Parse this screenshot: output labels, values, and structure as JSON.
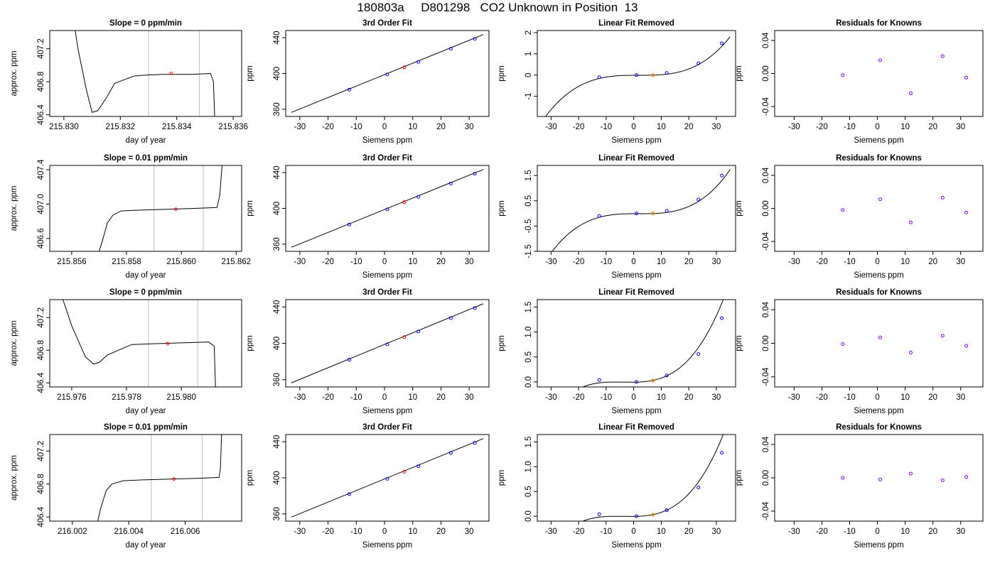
{
  "page_title": "180803a     D801298   CO2 Unknown in Position  13",
  "colors": {
    "known": "#0000ff",
    "unknown": "#ff0000",
    "reference": "#ff8c00",
    "residual": "#7f00ff",
    "guide": "#bebebe",
    "line": "#000000"
  },
  "chart_data": [
    {
      "type": "line",
      "row": 0,
      "panel": "trace",
      "title": "Slope =  0  ppm/min",
      "xlabel": "day of year",
      "ylabel": "approx. ppm",
      "xlim": [
        215.8295,
        215.8363
      ],
      "ylim": [
        406.38,
        407.42
      ],
      "xticks": [
        215.83,
        215.832,
        215.834,
        215.836
      ],
      "xtick_labels": [
        "215.830",
        "215.832",
        "215.834",
        "215.836"
      ],
      "yticks": [
        406.4,
        406.8,
        407.2
      ],
      "ytick_labels": [
        "406.4",
        "406.8",
        "407.2"
      ],
      "vlines": [
        215.833,
        215.8348
      ],
      "trace": [
        [
          215.8301,
          408.1
        ],
        [
          215.8305,
          407.2
        ],
        [
          215.8308,
          406.7
        ],
        [
          215.831,
          406.43
        ],
        [
          215.8312,
          406.45
        ],
        [
          215.8315,
          406.6
        ],
        [
          215.8318,
          406.78
        ],
        [
          215.8321,
          406.82
        ],
        [
          215.8325,
          406.87
        ],
        [
          215.8329,
          406.88
        ],
        [
          215.8335,
          406.89
        ],
        [
          215.8345,
          406.89
        ],
        [
          215.8352,
          406.9
        ],
        [
          215.8353,
          406.8
        ],
        [
          215.83535,
          406.3
        ]
      ],
      "marker": {
        "x": 215.8338,
        "y": 406.9
      }
    },
    {
      "type": "scatter",
      "row": 0,
      "panel": "fit",
      "title": "3rd Order Fit",
      "xlabel": "Siemens ppm",
      "ylabel": "ppm",
      "xlim": [
        -35,
        37
      ],
      "ylim": [
        352,
        448
      ],
      "xticks": [
        -30,
        -20,
        -10,
        0,
        10,
        20,
        30
      ],
      "xtick_labels": [
        "-30",
        "-20",
        "-10",
        "0",
        "10",
        "20",
        "30"
      ],
      "yticks": [
        360,
        400,
        440
      ],
      "ytick_labels": [
        "360",
        "400",
        "440"
      ],
      "knowns": [
        [
          -12.5,
          381.9
        ],
        [
          1.0,
          398.9
        ],
        [
          12.0,
          412.9
        ],
        [
          23.5,
          427.7
        ],
        [
          32.0,
          438.7
        ]
      ],
      "unknown": [
        7.0,
        406.8
      ],
      "fit_line": [
        [
          -33,
          356.5
        ],
        [
          35,
          443.5
        ]
      ]
    },
    {
      "type": "scatter",
      "row": 0,
      "panel": "nonlinear",
      "title": "Linear Fit Removed",
      "xlabel": "Siemens ppm",
      "ylabel": "ppm",
      "xlim": [
        -35,
        37
      ],
      "ylim": [
        -1.95,
        2.1
      ],
      "xticks": [
        -30,
        -20,
        -10,
        0,
        10,
        20,
        30
      ],
      "xtick_labels": [
        "-30",
        "-20",
        "-10",
        "0",
        "10",
        "20",
        "30"
      ],
      "yticks": [
        -1,
        0,
        1,
        2
      ],
      "ytick_labels": [
        "-1",
        "0",
        "1",
        "2"
      ],
      "curve": {
        "x0": 2,
        "c3": 5e-05,
        "c2": 2e-05,
        "c1": 0.0,
        "c0": -0.01
      },
      "knowns": [
        [
          -12.5,
          -0.1
        ],
        [
          1.0,
          0.0
        ],
        [
          12.0,
          0.1
        ],
        [
          23.5,
          0.55
        ],
        [
          32.0,
          1.5
        ]
      ],
      "reference": [
        7.0,
        0.0
      ]
    },
    {
      "type": "scatter",
      "row": 0,
      "panel": "residuals",
      "title": "Residuals for Knowns",
      "xlabel": "Siemens ppm",
      "ylabel": "ppm",
      "xlim": [
        -37,
        38
      ],
      "ylim": [
        -0.052,
        0.052
      ],
      "xticks": [
        -30,
        -20,
        -10,
        0,
        10,
        20,
        30
      ],
      "xtick_labels": [
        "-30",
        "-20",
        "-10",
        "0",
        "10",
        "20",
        "30"
      ],
      "yticks": [
        -0.04,
        0.0,
        0.04
      ],
      "ytick_labels": [
        "-0.04",
        "0.00",
        "0.04"
      ],
      "residuals": [
        [
          -12.5,
          -0.002
        ],
        [
          1.0,
          0.016
        ],
        [
          12.0,
          -0.024
        ],
        [
          23.5,
          0.021
        ],
        [
          32.0,
          -0.005
        ]
      ]
    },
    {
      "type": "line",
      "row": 1,
      "panel": "trace",
      "title": "Slope =  0.01  ppm/min",
      "xlabel": "day of year",
      "ylabel": "approx. ppm",
      "xlim": [
        215.8552,
        215.8622
      ],
      "ylim": [
        406.45,
        407.45
      ],
      "xticks": [
        215.856,
        215.858,
        215.86,
        215.862
      ],
      "xtick_labels": [
        "215.856",
        "215.858",
        "215.860",
        "215.862"
      ],
      "yticks": [
        406.6,
        407.0,
        407.4
      ],
      "ytick_labels": [
        "406.6",
        "407.0",
        "407.4"
      ],
      "vlines": [
        215.859,
        215.8608
      ],
      "trace": [
        [
          215.857,
          406.45
        ],
        [
          215.8571,
          406.55
        ],
        [
          215.8573,
          406.78
        ],
        [
          215.8575,
          406.87
        ],
        [
          215.8578,
          406.92
        ],
        [
          215.8585,
          406.93
        ],
        [
          215.8595,
          406.94
        ],
        [
          215.8605,
          406.95
        ],
        [
          215.8613,
          406.96
        ],
        [
          215.8614,
          407.1
        ],
        [
          215.8615,
          407.5
        ]
      ],
      "marker": {
        "x": 215.8598,
        "y": 406.94
      }
    },
    {
      "type": "scatter",
      "row": 1,
      "panel": "fit",
      "title": "3rd Order Fit",
      "xlabel": "Siemens ppm",
      "ylabel": "ppm",
      "xlim": [
        -35,
        37
      ],
      "ylim": [
        352,
        448
      ],
      "xticks": [
        -30,
        -20,
        -10,
        0,
        10,
        20,
        30
      ],
      "xtick_labels": [
        "-30",
        "-20",
        "-10",
        "0",
        "10",
        "20",
        "30"
      ],
      "yticks": [
        360,
        400,
        440
      ],
      "ytick_labels": [
        "360",
        "400",
        "440"
      ],
      "knowns": [
        [
          -12.5,
          381.9
        ],
        [
          1.0,
          398.9
        ],
        [
          12.0,
          412.9
        ],
        [
          23.5,
          427.7
        ],
        [
          32.0,
          438.7
        ]
      ],
      "unknown": [
        7.0,
        406.9
      ],
      "fit_line": [
        [
          -33,
          356.5
        ],
        [
          35,
          443.5
        ]
      ]
    },
    {
      "type": "scatter",
      "row": 1,
      "panel": "nonlinear",
      "title": "Linear Fit Removed",
      "xlabel": "Siemens ppm",
      "ylabel": "ppm",
      "xlim": [
        -35,
        37
      ],
      "ylim": [
        -1.5,
        1.9
      ],
      "xticks": [
        -30,
        -20,
        -10,
        0,
        10,
        20,
        30
      ],
      "xtick_labels": [
        "-30",
        "-20",
        "-10",
        "0",
        "10",
        "20",
        "30"
      ],
      "yticks": [
        -1.5,
        -0.5,
        0.5,
        1.5
      ],
      "ytick_labels": [
        "-1.5",
        "-0.5",
        "0.5",
        "1.5"
      ],
      "curve": {
        "x0": 2,
        "c3": 4.8e-05,
        "c2": 2e-05,
        "c1": 0.0,
        "c0": -0.01
      },
      "knowns": [
        [
          -12.5,
          -0.1
        ],
        [
          1.0,
          0.0
        ],
        [
          12.0,
          0.1
        ],
        [
          23.5,
          0.55
        ],
        [
          32.0,
          1.5
        ]
      ],
      "reference": [
        7.0,
        0.0
      ]
    },
    {
      "type": "scatter",
      "row": 1,
      "panel": "residuals",
      "title": "Residuals for Knowns",
      "xlabel": "Siemens ppm",
      "ylabel": "ppm",
      "xlim": [
        -37,
        38
      ],
      "ylim": [
        -0.052,
        0.052
      ],
      "xticks": [
        -30,
        -20,
        -10,
        0,
        10,
        20,
        30
      ],
      "xtick_labels": [
        "-30",
        "-20",
        "-10",
        "0",
        "10",
        "20",
        "30"
      ],
      "yticks": [
        -0.04,
        0.0,
        0.04
      ],
      "ytick_labels": [
        "-0.04",
        "0.00",
        "0.04"
      ],
      "residuals": [
        [
          -12.5,
          -0.002
        ],
        [
          1.0,
          0.011
        ],
        [
          12.0,
          -0.017
        ],
        [
          23.5,
          0.013
        ],
        [
          32.0,
          -0.005
        ]
      ]
    },
    {
      "type": "line",
      "row": 2,
      "panel": "trace",
      "title": "Slope =  0  ppm/min",
      "xlabel": "day of year",
      "ylabel": "approx. ppm",
      "xlim": [
        215.9752,
        215.9822
      ],
      "ylim": [
        406.35,
        407.42
      ],
      "xticks": [
        215.976,
        215.978,
        215.98
      ],
      "xtick_labels": [
        "215.976",
        "215.978",
        "215.980"
      ],
      "yticks": [
        406.4,
        406.8,
        407.2
      ],
      "ytick_labels": [
        "406.4",
        "406.8",
        "407.2"
      ],
      "vlines": [
        215.9788,
        215.9806
      ],
      "trace": [
        [
          215.9755,
          407.6
        ],
        [
          215.976,
          407.1
        ],
        [
          215.9765,
          406.72
        ],
        [
          215.9768,
          406.63
        ],
        [
          215.977,
          406.65
        ],
        [
          215.9773,
          406.74
        ],
        [
          215.9777,
          406.8
        ],
        [
          215.9782,
          406.87
        ],
        [
          215.979,
          406.88
        ],
        [
          215.98,
          406.89
        ],
        [
          215.981,
          406.9
        ],
        [
          215.9812,
          406.85
        ],
        [
          215.98125,
          406.3
        ]
      ],
      "marker": {
        "x": 215.9795,
        "y": 406.88
      }
    },
    {
      "type": "scatter",
      "row": 2,
      "panel": "fit",
      "title": "3rd Order Fit",
      "xlabel": "Siemens ppm",
      "ylabel": "ppm",
      "xlim": [
        -35,
        37
      ],
      "ylim": [
        352,
        448
      ],
      "xticks": [
        -30,
        -20,
        -10,
        0,
        10,
        20,
        30
      ],
      "xtick_labels": [
        "-30",
        "-20",
        "-10",
        "0",
        "10",
        "20",
        "30"
      ],
      "yticks": [
        360,
        400,
        440
      ],
      "ytick_labels": [
        "360",
        "400",
        "440"
      ],
      "knowns": [
        [
          -12.5,
          381.9
        ],
        [
          1.0,
          398.9
        ],
        [
          12.0,
          412.9
        ],
        [
          23.5,
          427.7
        ],
        [
          32.0,
          438.7
        ]
      ],
      "unknown": [
        7.0,
        406.8
      ],
      "fit_line": [
        [
          -33,
          356.5
        ],
        [
          35,
          443.5
        ]
      ]
    },
    {
      "type": "scatter",
      "row": 2,
      "panel": "nonlinear",
      "title": "Linear Fit Removed",
      "xlabel": "Siemens ppm",
      "ylabel": "ppm",
      "xlim": [
        -35,
        37
      ],
      "ylim": [
        -0.1,
        1.65
      ],
      "xticks": [
        -30,
        -20,
        -10,
        0,
        10,
        20,
        30
      ],
      "xtick_labels": [
        "-30",
        "-20",
        "-10",
        "0",
        "10",
        "20",
        "30"
      ],
      "yticks": [
        0.0,
        0.5,
        1.0,
        1.5
      ],
      "ytick_labels": [
        "0.0",
        "0.5",
        "1.0",
        "1.5"
      ],
      "curve": {
        "x0": -1,
        "c3": 3.5e-05,
        "c2": 0.0003,
        "c1": 0.0,
        "c0": -0.005
      },
      "knowns": [
        [
          -12.5,
          0.04
        ],
        [
          1.0,
          0.0
        ],
        [
          12.0,
          0.13
        ],
        [
          23.5,
          0.56
        ],
        [
          32.0,
          1.28
        ]
      ],
      "reference": [
        7.0,
        0.03
      ]
    },
    {
      "type": "scatter",
      "row": 2,
      "panel": "residuals",
      "title": "Residuals for Knowns",
      "xlabel": "Siemens ppm",
      "ylabel": "ppm",
      "xlim": [
        -37,
        38
      ],
      "ylim": [
        -0.052,
        0.052
      ],
      "xticks": [
        -30,
        -20,
        -10,
        0,
        10,
        20,
        30
      ],
      "xtick_labels": [
        "-30",
        "-20",
        "-10",
        "0",
        "10",
        "20",
        "30"
      ],
      "yticks": [
        -0.04,
        0.0,
        0.04
      ],
      "ytick_labels": [
        "-0.04",
        "0.00",
        "0.04"
      ],
      "residuals": [
        [
          -12.5,
          -0.001
        ],
        [
          1.0,
          0.007
        ],
        [
          12.0,
          -0.011
        ],
        [
          23.5,
          0.009
        ],
        [
          32.0,
          -0.003
        ]
      ]
    },
    {
      "type": "line",
      "row": 3,
      "panel": "trace",
      "title": "Slope =  0.01  ppm/min",
      "xlabel": "day of year",
      "ylabel": "approx. ppm",
      "xlim": [
        216.0012,
        216.008
      ],
      "ylim": [
        406.35,
        407.4
      ],
      "xticks": [
        216.002,
        216.004,
        216.006
      ],
      "xtick_labels": [
        "216.002",
        "216.004",
        "216.006"
      ],
      "yticks": [
        406.4,
        406.8,
        407.2
      ],
      "ytick_labels": [
        "406.4",
        "406.8",
        "407.2"
      ],
      "vlines": [
        216.0048,
        216.0066
      ],
      "trace": [
        [
          216.0029,
          406.35
        ],
        [
          216.003,
          406.5
        ],
        [
          216.0032,
          406.72
        ],
        [
          216.0034,
          406.8
        ],
        [
          216.0038,
          406.84
        ],
        [
          216.0045,
          406.85
        ],
        [
          216.0055,
          406.86
        ],
        [
          216.0065,
          406.87
        ],
        [
          216.0072,
          406.88
        ],
        [
          216.00725,
          407.0
        ],
        [
          216.0073,
          407.5
        ]
      ],
      "marker": {
        "x": 216.0056,
        "y": 406.86
      }
    },
    {
      "type": "scatter",
      "row": 3,
      "panel": "fit",
      "title": "3rd Order Fit",
      "xlabel": "Siemens ppm",
      "ylabel": "ppm",
      "xlim": [
        -35,
        37
      ],
      "ylim": [
        352,
        448
      ],
      "xticks": [
        -30,
        -20,
        -10,
        0,
        10,
        20,
        30
      ],
      "xtick_labels": [
        "-30",
        "-20",
        "-10",
        "0",
        "10",
        "20",
        "30"
      ],
      "yticks": [
        360,
        400,
        440
      ],
      "ytick_labels": [
        "360",
        "400",
        "440"
      ],
      "knowns": [
        [
          -12.5,
          381.9
        ],
        [
          1.0,
          398.9
        ],
        [
          12.0,
          412.9
        ],
        [
          23.5,
          427.7
        ],
        [
          32.0,
          438.7
        ]
      ],
      "unknown": [
        7.0,
        406.8
      ],
      "fit_line": [
        [
          -33,
          356.5
        ],
        [
          35,
          443.5
        ]
      ]
    },
    {
      "type": "scatter",
      "row": 3,
      "panel": "nonlinear",
      "title": "Linear Fit Removed",
      "xlabel": "Siemens ppm",
      "ylabel": "ppm",
      "xlim": [
        -35,
        37
      ],
      "ylim": [
        -0.1,
        1.65
      ],
      "xticks": [
        -30,
        -20,
        -10,
        0,
        10,
        20,
        30
      ],
      "xtick_labels": [
        "-30",
        "-20",
        "-10",
        "0",
        "10",
        "20",
        "30"
      ],
      "yticks": [
        0.0,
        0.5,
        1.0,
        1.5
      ],
      "ytick_labels": [
        "0.0",
        "0.5",
        "1.0",
        "1.5"
      ],
      "curve": {
        "x0": -1,
        "c3": 3.5e-05,
        "c2": 0.0003,
        "c1": 0.0,
        "c0": -0.005
      },
      "knowns": [
        [
          -12.5,
          0.04
        ],
        [
          1.0,
          0.0
        ],
        [
          12.0,
          0.12
        ],
        [
          23.5,
          0.58
        ],
        [
          32.0,
          1.28
        ]
      ],
      "reference": [
        7.0,
        0.03
      ]
    },
    {
      "type": "scatter",
      "row": 3,
      "panel": "residuals",
      "title": "Residuals for Knowns",
      "xlabel": "Siemens ppm",
      "ylabel": "ppm",
      "xlim": [
        -37,
        38
      ],
      "ylim": [
        -0.052,
        0.052
      ],
      "xticks": [
        -30,
        -20,
        -10,
        0,
        10,
        20,
        30
      ],
      "xtick_labels": [
        "-30",
        "-20",
        "-10",
        "0",
        "10",
        "20",
        "30"
      ],
      "yticks": [
        -0.04,
        0.0,
        0.04
      ],
      "ytick_labels": [
        "-0.04",
        "0.00",
        "0.04"
      ],
      "residuals": [
        [
          -12.5,
          0.0
        ],
        [
          1.0,
          -0.002
        ],
        [
          12.0,
          0.005
        ],
        [
          23.5,
          -0.003
        ],
        [
          32.0,
          0.001
        ]
      ]
    }
  ]
}
